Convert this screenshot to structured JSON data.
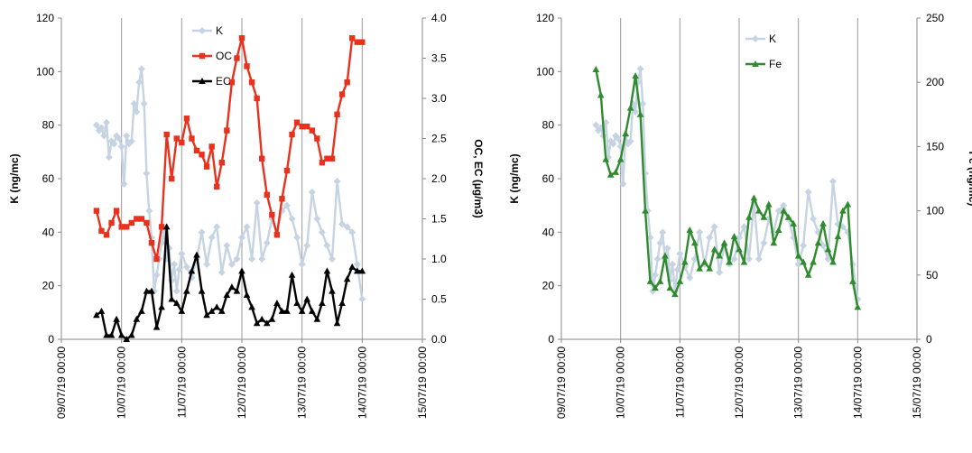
{
  "chart_data": [
    {
      "type": "line",
      "title": "",
      "xlabel": "",
      "ylabel": "K (ng/mc)",
      "y2label": "OC, EC (µg/m3)",
      "xlim": [
        "09/07/19 00:00",
        "15/07/19 00:00"
      ],
      "ylim": [
        0,
        120
      ],
      "y2lim": [
        0,
        4
      ],
      "x_ticks": [
        "09/07/19 00:00",
        "10/07/19 00:00",
        "11/07/19 00:00",
        "12/07/19 00:00",
        "13/07/19 00:00",
        "14/07/19 00:00",
        "15/07/19 00:00"
      ],
      "y_ticks": [
        "0",
        "20",
        "40",
        "60",
        "80",
        "100",
        "120"
      ],
      "y2_ticks": [
        "0.0",
        "0.5",
        "1.0",
        "1.5",
        "2.0",
        "2.5",
        "3.0",
        "3.5",
        "4.0"
      ],
      "grid": "vertical",
      "legend": "top-center",
      "series": [
        {
          "name": "K",
          "axis": "left",
          "color": "#c5d3e2",
          "marker": "diamond",
          "x": [
            "09/07/19 14:00",
            "09/07/19 15:00",
            "09/07/19 16:00",
            "09/07/19 17:00",
            "09/07/19 18:00",
            "09/07/19 19:00",
            "09/07/19 20:00",
            "09/07/19 21:00",
            "09/07/19 22:00",
            "09/07/19 23:00",
            "10/07/19 00:00",
            "10/07/19 01:00",
            "10/07/19 02:00",
            "10/07/19 03:00",
            "10/07/19 04:00",
            "10/07/19 05:00",
            "10/07/19 06:00",
            "10/07/19 07:00",
            "10/07/19 08:00",
            "10/07/19 09:00",
            "10/07/19 10:00",
            "10/07/19 11:00",
            "10/07/19 12:00",
            "10/07/19 13:00",
            "10/07/19 14:00",
            "10/07/19 15:00",
            "10/07/19 16:00",
            "10/07/19 17:00",
            "10/07/19 18:00",
            "10/07/19 19:00",
            "10/07/19 20:00",
            "10/07/19 21:00",
            "10/07/19 22:00",
            "10/07/19 23:00",
            "11/07/19 00:00",
            "11/07/19 02:00",
            "11/07/19 04:00",
            "11/07/19 06:00",
            "11/07/19 08:00",
            "11/07/19 10:00",
            "11/07/19 12:00",
            "11/07/19 14:00",
            "11/07/19 16:00",
            "11/07/19 18:00",
            "11/07/19 20:00",
            "11/07/19 22:00",
            "12/07/19 00:00",
            "12/07/19 02:00",
            "12/07/19 04:00",
            "12/07/19 06:00",
            "12/07/19 08:00",
            "12/07/19 10:00",
            "12/07/19 12:00",
            "12/07/19 14:00",
            "12/07/19 16:00",
            "12/07/19 18:00",
            "12/07/19 20:00",
            "12/07/19 22:00",
            "13/07/19 00:00",
            "13/07/19 02:00",
            "13/07/19 04:00",
            "13/07/19 06:00",
            "13/07/19 08:00",
            "13/07/19 10:00",
            "13/07/19 12:00",
            "13/07/19 14:00",
            "13/07/19 16:00",
            "13/07/19 18:00",
            "13/07/19 20:00",
            "13/07/19 22:00",
            "14/07/19 00:00"
          ],
          "values": [
            80,
            78,
            79,
            76,
            81,
            68,
            74,
            73,
            76,
            75,
            72,
            58,
            76,
            73,
            74,
            88,
            85,
            96,
            101,
            88,
            62,
            48,
            38,
            18,
            24,
            30,
            36,
            40,
            30,
            34,
            22,
            28,
            18,
            26,
            32,
            27,
            23,
            30,
            40,
            28,
            38,
            42,
            25,
            35,
            28,
            30,
            38,
            42,
            30,
            51,
            30,
            36,
            45,
            40,
            48,
            50,
            45,
            38,
            28,
            35,
            55,
            45,
            40,
            35,
            30,
            59,
            43,
            42,
            40,
            28,
            15
          ]
        },
        {
          "name": "OC",
          "axis": "right",
          "color": "#e8321e",
          "marker": "square",
          "x": [
            "09/07/19 14:00",
            "09/07/19 16:00",
            "09/07/19 18:00",
            "09/07/19 20:00",
            "09/07/19 22:00",
            "10/07/19 00:00",
            "10/07/19 02:00",
            "10/07/19 04:00",
            "10/07/19 06:00",
            "10/07/19 08:00",
            "10/07/19 10:00",
            "10/07/19 12:00",
            "10/07/19 14:00",
            "10/07/19 16:00",
            "10/07/19 18:00",
            "10/07/19 20:00",
            "10/07/19 22:00",
            "11/07/19 00:00",
            "11/07/19 02:00",
            "11/07/19 04:00",
            "11/07/19 06:00",
            "11/07/19 08:00",
            "11/07/19 10:00",
            "11/07/19 12:00",
            "11/07/19 14:00",
            "11/07/19 16:00",
            "11/07/19 18:00",
            "11/07/19 20:00",
            "11/07/19 22:00",
            "12/07/19 00:00",
            "12/07/19 02:00",
            "12/07/19 04:00",
            "12/07/19 06:00",
            "12/07/19 08:00",
            "12/07/19 10:00",
            "12/07/19 12:00",
            "12/07/19 14:00",
            "12/07/19 16:00",
            "12/07/19 18:00",
            "12/07/19 20:00",
            "12/07/19 22:00",
            "13/07/19 00:00",
            "13/07/19 02:00",
            "13/07/19 04:00",
            "13/07/19 06:00",
            "13/07/19 08:00",
            "13/07/19 10:00",
            "13/07/19 12:00",
            "13/07/19 14:00",
            "13/07/19 16:00",
            "13/07/19 18:00",
            "13/07/19 20:00",
            "13/07/19 22:00",
            "14/07/19 00:00"
          ],
          "values": [
            1.6,
            1.35,
            1.3,
            1.45,
            1.6,
            1.4,
            1.4,
            1.45,
            1.5,
            1.5,
            1.45,
            1.2,
            1.0,
            1.4,
            2.55,
            2.0,
            2.5,
            2.45,
            2.75,
            2.5,
            2.35,
            2.3,
            2.15,
            2.4,
            1.9,
            2.2,
            2.6,
            3.2,
            3.5,
            3.75,
            3.4,
            3.2,
            3.0,
            2.25,
            1.8,
            1.55,
            1.3,
            1.75,
            2.1,
            2.55,
            2.7,
            2.65,
            2.65,
            2.6,
            2.5,
            2.2,
            2.25,
            2.25,
            2.8,
            3.05,
            3.2,
            3.75,
            3.7,
            3.7
          ]
        },
        {
          "name": "EC",
          "axis": "right",
          "color": "#000000",
          "marker": "triangle",
          "x": [
            "09/07/19 14:00",
            "09/07/19 16:00",
            "09/07/19 18:00",
            "09/07/19 20:00",
            "09/07/19 22:00",
            "10/07/19 00:00",
            "10/07/19 02:00",
            "10/07/19 04:00",
            "10/07/19 06:00",
            "10/07/19 08:00",
            "10/07/19 10:00",
            "10/07/19 12:00",
            "10/07/19 14:00",
            "10/07/19 16:00",
            "10/07/19 18:00",
            "10/07/19 20:00",
            "10/07/19 22:00",
            "11/07/19 00:00",
            "11/07/19 02:00",
            "11/07/19 04:00",
            "11/07/19 06:00",
            "11/07/19 08:00",
            "11/07/19 10:00",
            "11/07/19 12:00",
            "11/07/19 14:00",
            "11/07/19 16:00",
            "11/07/19 18:00",
            "11/07/19 20:00",
            "11/07/19 22:00",
            "12/07/19 00:00",
            "12/07/19 02:00",
            "12/07/19 04:00",
            "12/07/19 06:00",
            "12/07/19 08:00",
            "12/07/19 10:00",
            "12/07/19 12:00",
            "12/07/19 14:00",
            "12/07/19 16:00",
            "12/07/19 18:00",
            "12/07/19 20:00",
            "12/07/19 22:00",
            "13/07/19 00:00",
            "13/07/19 02:00",
            "13/07/19 04:00",
            "13/07/19 06:00",
            "13/07/19 08:00",
            "13/07/19 10:00",
            "13/07/19 12:00",
            "13/07/19 14:00",
            "13/07/19 16:00",
            "13/07/19 18:00",
            "13/07/19 20:00",
            "13/07/19 22:00",
            "14/07/19 00:00"
          ],
          "values": [
            0.3,
            0.35,
            0.05,
            0.05,
            0.25,
            0.05,
            0.0,
            0.05,
            0.25,
            0.35,
            0.6,
            0.6,
            0.15,
            0.4,
            1.4,
            0.5,
            0.45,
            0.35,
            0.6,
            0.85,
            1.05,
            0.6,
            0.3,
            0.35,
            0.4,
            0.35,
            0.55,
            0.65,
            0.6,
            0.85,
            0.55,
            0.4,
            0.2,
            0.25,
            0.2,
            0.25,
            0.45,
            0.35,
            0.35,
            0.8,
            0.45,
            0.35,
            0.5,
            0.35,
            0.25,
            0.45,
            0.85,
            0.6,
            0.2,
            0.45,
            0.75,
            0.9,
            0.85,
            0.85
          ]
        }
      ]
    },
    {
      "type": "line",
      "title": "",
      "xlabel": "",
      "ylabel": "K (ng/mc)",
      "y2label": "Fe (ng/mc)",
      "xlim": [
        "09/07/19 00:00",
        "15/07/19 00:00"
      ],
      "ylim": [
        0,
        120
      ],
      "y2lim": [
        0,
        250
      ],
      "x_ticks": [
        "09/07/19 00:00",
        "10/07/19 00:00",
        "11/07/19 00:00",
        "12/07/19 00:00",
        "13/07/19 00:00",
        "14/07/19 00:00",
        "15/07/19 00:00"
      ],
      "y_ticks": [
        "0",
        "20",
        "40",
        "60",
        "80",
        "100",
        "120"
      ],
      "y2_ticks": [
        "0",
        "50",
        "100",
        "150",
        "200",
        "250"
      ],
      "grid": "vertical",
      "legend": "top-center",
      "series": [
        {
          "name": "K",
          "axis": "left",
          "color": "#c5d3e2",
          "marker": "diamond",
          "x": [
            "09/07/19 14:00",
            "09/07/19 15:00",
            "09/07/19 16:00",
            "09/07/19 17:00",
            "09/07/19 18:00",
            "09/07/19 19:00",
            "09/07/19 20:00",
            "09/07/19 21:00",
            "09/07/19 22:00",
            "09/07/19 23:00",
            "10/07/19 00:00",
            "10/07/19 01:00",
            "10/07/19 02:00",
            "10/07/19 03:00",
            "10/07/19 04:00",
            "10/07/19 05:00",
            "10/07/19 06:00",
            "10/07/19 07:00",
            "10/07/19 08:00",
            "10/07/19 09:00",
            "10/07/19 10:00",
            "10/07/19 11:00",
            "10/07/19 12:00",
            "10/07/19 13:00",
            "10/07/19 14:00",
            "10/07/19 15:00",
            "10/07/19 16:00",
            "10/07/19 17:00",
            "10/07/19 18:00",
            "10/07/19 19:00",
            "10/07/19 20:00",
            "10/07/19 21:00",
            "10/07/19 22:00",
            "10/07/19 23:00",
            "11/07/19 00:00",
            "11/07/19 02:00",
            "11/07/19 04:00",
            "11/07/19 06:00",
            "11/07/19 08:00",
            "11/07/19 10:00",
            "11/07/19 12:00",
            "11/07/19 14:00",
            "11/07/19 16:00",
            "11/07/19 18:00",
            "11/07/19 20:00",
            "11/07/19 22:00",
            "12/07/19 00:00",
            "12/07/19 02:00",
            "12/07/19 04:00",
            "12/07/19 06:00",
            "12/07/19 08:00",
            "12/07/19 10:00",
            "12/07/19 12:00",
            "12/07/19 14:00",
            "12/07/19 16:00",
            "12/07/19 18:00",
            "12/07/19 20:00",
            "12/07/19 22:00",
            "13/07/19 00:00",
            "13/07/19 02:00",
            "13/07/19 04:00",
            "13/07/19 06:00",
            "13/07/19 08:00",
            "13/07/19 10:00",
            "13/07/19 12:00",
            "13/07/19 14:00",
            "13/07/19 16:00",
            "13/07/19 18:00",
            "13/07/19 20:00",
            "13/07/19 22:00",
            "14/07/19 00:00"
          ],
          "values": [
            80,
            78,
            79,
            76,
            81,
            68,
            74,
            73,
            76,
            75,
            72,
            58,
            76,
            73,
            74,
            88,
            85,
            96,
            101,
            88,
            62,
            48,
            38,
            18,
            24,
            30,
            36,
            40,
            30,
            34,
            22,
            28,
            18,
            26,
            32,
            27,
            23,
            30,
            40,
            28,
            38,
            42,
            25,
            35,
            28,
            30,
            38,
            42,
            30,
            51,
            30,
            36,
            45,
            40,
            48,
            50,
            45,
            38,
            28,
            35,
            55,
            45,
            40,
            35,
            30,
            59,
            43,
            42,
            40,
            28,
            15
          ]
        },
        {
          "name": "Fe",
          "axis": "right",
          "color": "#2e8b2e",
          "marker": "triangle",
          "x": [
            "09/07/19 14:00",
            "09/07/19 16:00",
            "09/07/19 18:00",
            "09/07/19 20:00",
            "09/07/19 22:00",
            "10/07/19 00:00",
            "10/07/19 02:00",
            "10/07/19 04:00",
            "10/07/19 06:00",
            "10/07/19 08:00",
            "10/07/19 10:00",
            "10/07/19 12:00",
            "10/07/19 14:00",
            "10/07/19 16:00",
            "10/07/19 18:00",
            "10/07/19 20:00",
            "10/07/19 22:00",
            "11/07/19 00:00",
            "11/07/19 02:00",
            "11/07/19 04:00",
            "11/07/19 06:00",
            "11/07/19 08:00",
            "11/07/19 10:00",
            "11/07/19 12:00",
            "11/07/19 14:00",
            "11/07/19 16:00",
            "11/07/19 18:00",
            "11/07/19 20:00",
            "11/07/19 22:00",
            "12/07/19 00:00",
            "12/07/19 02:00",
            "12/07/19 04:00",
            "12/07/19 06:00",
            "12/07/19 08:00",
            "12/07/19 10:00",
            "12/07/19 12:00",
            "12/07/19 14:00",
            "12/07/19 16:00",
            "12/07/19 18:00",
            "12/07/19 20:00",
            "12/07/19 22:00",
            "13/07/19 00:00",
            "13/07/19 02:00",
            "13/07/19 04:00",
            "13/07/19 06:00",
            "13/07/19 08:00",
            "13/07/19 10:00",
            "13/07/19 12:00",
            "13/07/19 14:00",
            "13/07/19 16:00",
            "13/07/19 18:00",
            "13/07/19 20:00",
            "13/07/19 22:00",
            "14/07/19 00:00"
          ],
          "values": [
            210,
            190,
            140,
            128,
            130,
            140,
            160,
            180,
            205,
            175,
            100,
            45,
            40,
            45,
            65,
            40,
            35,
            45,
            60,
            85,
            75,
            55,
            60,
            55,
            70,
            65,
            75,
            60,
            80,
            70,
            60,
            95,
            110,
            100,
            95,
            105,
            75,
            85,
            100,
            95,
            90,
            65,
            60,
            50,
            60,
            75,
            90,
            70,
            60,
            80,
            100,
            105,
            45,
            25
          ]
        }
      ]
    }
  ]
}
